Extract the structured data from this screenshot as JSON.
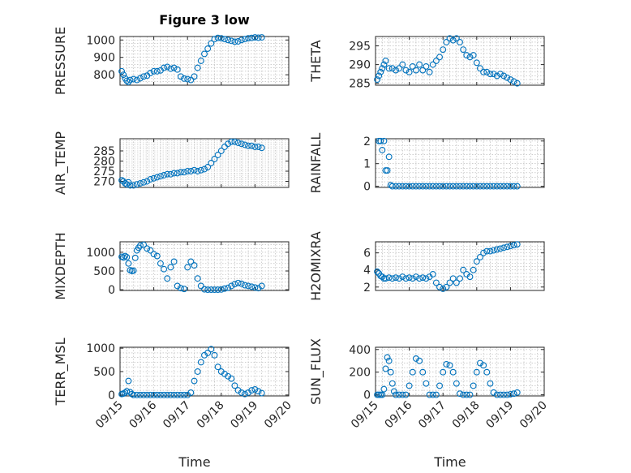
{
  "figure": {
    "title": "Figure 3 low",
    "marker_color": "#0072BD",
    "grid": true,
    "minor_grid": true
  },
  "chart_data": [
    {
      "type": "scatter",
      "name": "PRESSURE",
      "ylabel": "PRESSURE",
      "title": "Figure 3 low",
      "xlim": [
        0,
        5
      ],
      "ylim": [
        740,
        1020
      ],
      "yticks": [
        800,
        900,
        1000
      ],
      "show_xticklabels": false,
      "x": [
        0.05,
        0.1,
        0.15,
        0.2,
        0.25,
        0.3,
        0.4,
        0.5,
        0.6,
        0.7,
        0.8,
        0.9,
        1.0,
        1.1,
        1.2,
        1.3,
        1.4,
        1.5,
        1.6,
        1.7,
        1.8,
        1.9,
        2.0,
        2.1,
        2.2,
        2.3,
        2.4,
        2.5,
        2.6,
        2.7,
        2.8,
        2.9,
        3.0,
        3.1,
        3.2,
        3.3,
        3.4,
        3.5,
        3.6,
        3.7,
        3.8,
        3.9,
        4.0,
        4.1,
        4.2
      ],
      "y": [
        820,
        800,
        780,
        765,
        758,
        770,
        775,
        770,
        780,
        790,
        795,
        810,
        820,
        820,
        825,
        840,
        845,
        835,
        840,
        830,
        790,
        778,
        775,
        770,
        790,
        840,
        880,
        920,
        950,
        980,
        1005,
        1012,
        1010,
        1005,
        1000,
        995,
        990,
        992,
        1000,
        1005,
        1010,
        1012,
        1015,
        1013,
        1015
      ]
    },
    {
      "type": "scatter",
      "name": "THETA",
      "ylabel": "THETA",
      "xlim": [
        0,
        5
      ],
      "ylim": [
        284.5,
        297.5
      ],
      "yticks": [
        285,
        290,
        295
      ],
      "show_xticklabels": false,
      "x": [
        0.05,
        0.1,
        0.15,
        0.2,
        0.25,
        0.3,
        0.4,
        0.5,
        0.6,
        0.7,
        0.8,
        0.9,
        1.0,
        1.1,
        1.2,
        1.3,
        1.4,
        1.5,
        1.6,
        1.7,
        1.8,
        1.9,
        2.0,
        2.1,
        2.2,
        2.3,
        2.4,
        2.5,
        2.6,
        2.7,
        2.8,
        2.9,
        3.0,
        3.1,
        3.2,
        3.3,
        3.4,
        3.5,
        3.6,
        3.7,
        3.8,
        3.9,
        4.0,
        4.1,
        4.2
      ],
      "y": [
        286,
        287,
        288,
        289,
        290,
        291,
        289,
        289,
        288.5,
        289,
        290,
        288.5,
        288,
        289.5,
        288.5,
        290,
        288.5,
        289.5,
        288,
        290,
        291,
        292,
        294,
        296,
        297,
        296.5,
        297,
        296,
        294,
        292.5,
        292,
        292.5,
        290.5,
        289,
        288,
        288,
        287.5,
        287.5,
        287,
        287.5,
        287,
        286.5,
        286,
        285.5,
        285
      ]
    },
    {
      "type": "scatter",
      "name": "AIR_TEMP",
      "ylabel": "AIR_TEMP",
      "xlim": [
        0,
        5
      ],
      "ylim": [
        267,
        291
      ],
      "yticks": [
        270,
        275,
        280,
        285
      ],
      "show_xticklabels": false,
      "x": [
        0.05,
        0.1,
        0.15,
        0.2,
        0.25,
        0.3,
        0.4,
        0.5,
        0.6,
        0.7,
        0.8,
        0.9,
        1.0,
        1.1,
        1.2,
        1.3,
        1.4,
        1.5,
        1.6,
        1.7,
        1.8,
        1.9,
        2.0,
        2.1,
        2.2,
        2.3,
        2.4,
        2.5,
        2.6,
        2.7,
        2.8,
        2.9,
        3.0,
        3.1,
        3.2,
        3.3,
        3.4,
        3.5,
        3.6,
        3.7,
        3.8,
        3.9,
        4.0,
        4.1,
        4.2
      ],
      "y": [
        270.5,
        270,
        269,
        268.5,
        269.5,
        268,
        268,
        268.5,
        269,
        269.5,
        270,
        271,
        271.5,
        272,
        272.5,
        273,
        273.5,
        273.5,
        274,
        274,
        274.5,
        274.5,
        275,
        275,
        275.5,
        275,
        275.5,
        276,
        277,
        279,
        281,
        283,
        285,
        287,
        288.5,
        289.5,
        289.5,
        289,
        288.5,
        288,
        287.5,
        287.5,
        287,
        287,
        286.5
      ]
    },
    {
      "type": "scatter",
      "name": "RAINFALL",
      "ylabel": "RAINFALL",
      "xlim": [
        0,
        5
      ],
      "ylim": [
        -0.05,
        2.1
      ],
      "yticks": [
        0,
        1,
        2
      ],
      "show_xticklabels": false,
      "x": [
        0.1,
        0.15,
        0.2,
        0.25,
        0.3,
        0.35,
        0.4,
        0.45,
        0.5,
        0.6,
        0.7,
        0.8,
        0.9,
        1.0,
        1.1,
        1.2,
        1.3,
        1.4,
        1.5,
        1.6,
        1.7,
        1.8,
        1.9,
        2.0,
        2.1,
        2.2,
        2.3,
        2.4,
        2.5,
        2.6,
        2.7,
        2.8,
        2.9,
        3.0,
        3.1,
        3.2,
        3.3,
        3.4,
        3.5,
        3.6,
        3.7,
        3.8,
        3.9,
        4.0,
        4.1,
        4.2
      ],
      "y": [
        2,
        2,
        1.6,
        2,
        0.7,
        0.7,
        1.3,
        0.05,
        0,
        0,
        0,
        0,
        0,
        0,
        0,
        0,
        0,
        0,
        0,
        0,
        0,
        0,
        0,
        0,
        0,
        0,
        0,
        0,
        0,
        0,
        0,
        0,
        0,
        0,
        0,
        0,
        0,
        0,
        0,
        0,
        0,
        0,
        0,
        0,
        0,
        0
      ]
    },
    {
      "type": "scatter",
      "name": "MIXDEPTH",
      "ylabel": "MIXDEPTH",
      "xlim": [
        0,
        5
      ],
      "ylim": [
        -20,
        1280
      ],
      "yticks": [
        0,
        500,
        1000
      ],
      "show_xticklabels": false,
      "x": [
        0.05,
        0.1,
        0.15,
        0.2,
        0.25,
        0.3,
        0.35,
        0.4,
        0.45,
        0.5,
        0.55,
        0.6,
        0.7,
        0.8,
        0.9,
        1.0,
        1.1,
        1.2,
        1.3,
        1.4,
        1.5,
        1.6,
        1.7,
        1.8,
        1.9,
        2.0,
        2.1,
        2.2,
        2.3,
        2.4,
        2.5,
        2.6,
        2.7,
        2.8,
        2.9,
        3.0,
        3.1,
        3.2,
        3.3,
        3.4,
        3.5,
        3.6,
        3.7,
        3.8,
        3.9,
        4.0,
        4.1,
        4.2
      ],
      "y": [
        880,
        860,
        900,
        870,
        700,
        520,
        500,
        510,
        850,
        1050,
        1120,
        1180,
        1200,
        1100,
        1050,
        950,
        900,
        700,
        550,
        300,
        600,
        750,
        100,
        40,
        20,
        600,
        750,
        650,
        300,
        100,
        10,
        0,
        0,
        0,
        0,
        5,
        30,
        50,
        100,
        150,
        180,
        160,
        120,
        100,
        80,
        60,
        40,
        100
      ]
    },
    {
      "type": "scatter",
      "name": "H2OMIXRA",
      "ylabel": "H2OMIXRA",
      "xlim": [
        0,
        5
      ],
      "ylim": [
        1.6,
        7.3
      ],
      "yticks": [
        2,
        4,
        6
      ],
      "show_xticklabels": false,
      "x": [
        0.05,
        0.1,
        0.15,
        0.2,
        0.25,
        0.3,
        0.4,
        0.5,
        0.6,
        0.7,
        0.8,
        0.9,
        1.0,
        1.1,
        1.2,
        1.3,
        1.4,
        1.5,
        1.6,
        1.7,
        1.8,
        1.9,
        2.0,
        2.1,
        2.2,
        2.3,
        2.4,
        2.5,
        2.6,
        2.7,
        2.8,
        2.9,
        3.0,
        3.1,
        3.2,
        3.3,
        3.4,
        3.5,
        3.6,
        3.7,
        3.8,
        3.9,
        4.0,
        4.1,
        4.2
      ],
      "y": [
        3.8,
        3.6,
        3.3,
        3.2,
        3.0,
        3.0,
        3.1,
        3.0,
        3.1,
        3.0,
        3.2,
        3.0,
        3.1,
        3.0,
        3.2,
        3.0,
        3.1,
        3.0,
        3.2,
        3.5,
        2.5,
        2.0,
        1.8,
        2.0,
        2.5,
        3.0,
        2.5,
        3.0,
        4.0,
        3.5,
        3.2,
        4.0,
        5.0,
        5.5,
        6.0,
        6.2,
        6.2,
        6.3,
        6.4,
        6.5,
        6.6,
        6.7,
        6.8,
        6.9,
        7.0
      ]
    },
    {
      "type": "scatter",
      "name": "TERR_MSL",
      "ylabel": "TERR_MSL",
      "xlim": [
        0,
        5
      ],
      "ylim": [
        -20,
        1020
      ],
      "yticks": [
        0,
        500,
        1000
      ],
      "show_xticklabels": true,
      "xticks": [
        0,
        1,
        2,
        3,
        4,
        5
      ],
      "xticklabels": [
        "09/15",
        "09/16",
        "09/17",
        "09/18",
        "09/19",
        "09/20"
      ],
      "xlabel": "Time",
      "x": [
        0.05,
        0.1,
        0.15,
        0.2,
        0.25,
        0.3,
        0.35,
        0.4,
        0.5,
        0.6,
        0.7,
        0.8,
        0.9,
        1.0,
        1.1,
        1.2,
        1.3,
        1.4,
        1.5,
        1.6,
        1.7,
        1.8,
        1.9,
        2.0,
        2.1,
        2.2,
        2.3,
        2.4,
        2.5,
        2.6,
        2.7,
        2.8,
        2.9,
        3.0,
        3.1,
        3.2,
        3.3,
        3.4,
        3.5,
        3.6,
        3.7,
        3.8,
        3.9,
        4.0,
        4.1,
        4.2
      ],
      "y": [
        20,
        30,
        50,
        80,
        300,
        60,
        20,
        0,
        0,
        0,
        0,
        0,
        0,
        0,
        0,
        0,
        0,
        0,
        0,
        0,
        0,
        0,
        0,
        0,
        50,
        300,
        500,
        700,
        850,
        900,
        980,
        850,
        600,
        500,
        450,
        400,
        350,
        200,
        100,
        50,
        20,
        50,
        100,
        120,
        80,
        40
      ]
    },
    {
      "type": "scatter",
      "name": "SUN_FLUX",
      "ylabel": "SUN_FLUX",
      "xlim": [
        0,
        5
      ],
      "ylim": [
        -10,
        420
      ],
      "yticks": [
        0,
        200,
        400
      ],
      "show_xticklabels": true,
      "xticks": [
        0,
        1,
        2,
        3,
        4,
        5
      ],
      "xticklabels": [
        "09/15",
        "09/16",
        "09/17",
        "09/18",
        "09/19",
        "09/20"
      ],
      "xlabel": "Time",
      "x": [
        0.05,
        0.1,
        0.15,
        0.2,
        0.25,
        0.3,
        0.35,
        0.4,
        0.45,
        0.5,
        0.55,
        0.6,
        0.7,
        0.8,
        0.9,
        1.0,
        1.1,
        1.2,
        1.3,
        1.4,
        1.5,
        1.6,
        1.7,
        1.8,
        1.9,
        2.0,
        2.1,
        2.2,
        2.3,
        2.4,
        2.5,
        2.6,
        2.7,
        2.8,
        2.9,
        3.0,
        3.1,
        3.2,
        3.3,
        3.4,
        3.5,
        3.6,
        3.7,
        3.8,
        3.9,
        4.0,
        4.1,
        4.2
      ],
      "y": [
        0,
        0,
        0,
        0,
        50,
        230,
        330,
        300,
        200,
        100,
        30,
        0,
        0,
        0,
        0,
        80,
        200,
        320,
        300,
        200,
        100,
        0,
        0,
        0,
        80,
        200,
        270,
        260,
        200,
        100,
        10,
        0,
        0,
        0,
        80,
        200,
        280,
        260,
        200,
        100,
        20,
        0,
        0,
        0,
        0,
        5,
        10,
        20
      ]
    }
  ]
}
